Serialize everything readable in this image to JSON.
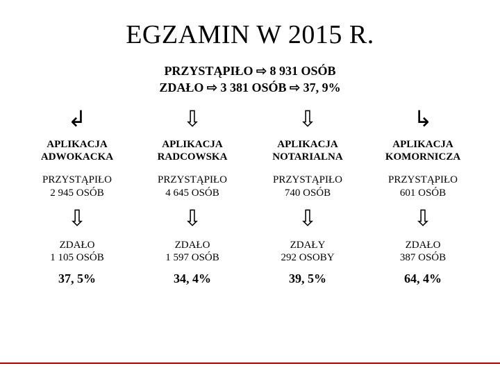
{
  "title": "EGZAMIN W 2015 R.",
  "summary": {
    "line1": "PRZYSTĄPIŁO ⇨ 8 931 OSÓB",
    "line2": "ZDAŁO    ⇨  3 381 OSÓB ⇨ 37, 9%"
  },
  "top_arrows": [
    "↲",
    "⇩",
    "⇩",
    "↳"
  ],
  "columns": [
    {
      "name_l1": "APLIKACJA",
      "name_l2": "ADWOKACKA",
      "took_label": "PRZYSTĄPIŁO",
      "took_value": "2 945 OSÓB",
      "pass_label": "ZDAŁO",
      "pass_value": "1 105 OSÓB",
      "pct": "37, 5%"
    },
    {
      "name_l1": "APLIKACJA",
      "name_l2": "RADCOWSKA",
      "took_label": "PRZYSTĄPIŁO",
      "took_value": "4 645 OSÓB",
      "pass_label": "ZDAŁO",
      "pass_value": "1 597 OSÓB",
      "pct": "34, 4%"
    },
    {
      "name_l1": "APLIKACJA",
      "name_l2": "NOTARIALNA",
      "took_label": "PRZYSTĄPIŁO",
      "took_value": "740 OSÓB",
      "pass_label": "ZDAŁY",
      "pass_value": "292  OSOBY",
      "pct": "39, 5%"
    },
    {
      "name_l1": "APLIKACJA",
      "name_l2": "KOMORNICZA",
      "took_label": "PRZYSTĄPIŁO",
      "took_value": "601 OSÓB",
      "pass_label": "ZDAŁO",
      "pass_value": "387 OSÓB",
      "pct": "64, 4%"
    }
  ],
  "mid_arrow": "⇩",
  "colors": {
    "text": "#000000",
    "background": "#ffffff",
    "footer_line": "#b00000"
  }
}
